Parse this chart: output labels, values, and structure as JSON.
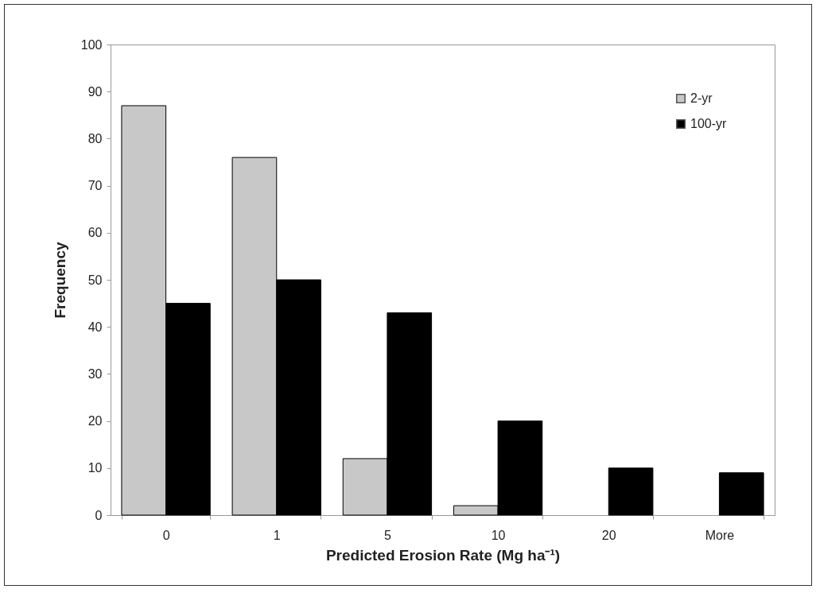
{
  "chart_data": {
    "type": "bar",
    "xlabel": "Predicted Erosion Rate (Mg ha⁻¹)",
    "ylabel": "Frequency",
    "categories": [
      "0",
      "1",
      "5",
      "10",
      "20",
      "More"
    ],
    "series": [
      {
        "name": "2-yr",
        "color": "#c8c8c8",
        "values": [
          87,
          76,
          12,
          2,
          0,
          0
        ]
      },
      {
        "name": "100-yr",
        "color": "#000000",
        "values": [
          45,
          50,
          43,
          20,
          10,
          9
        ]
      }
    ],
    "ylim": [
      0,
      100
    ],
    "yticks": [
      0,
      10,
      20,
      30,
      40,
      50,
      60,
      70,
      80,
      90,
      100
    ],
    "legend": "top right"
  }
}
